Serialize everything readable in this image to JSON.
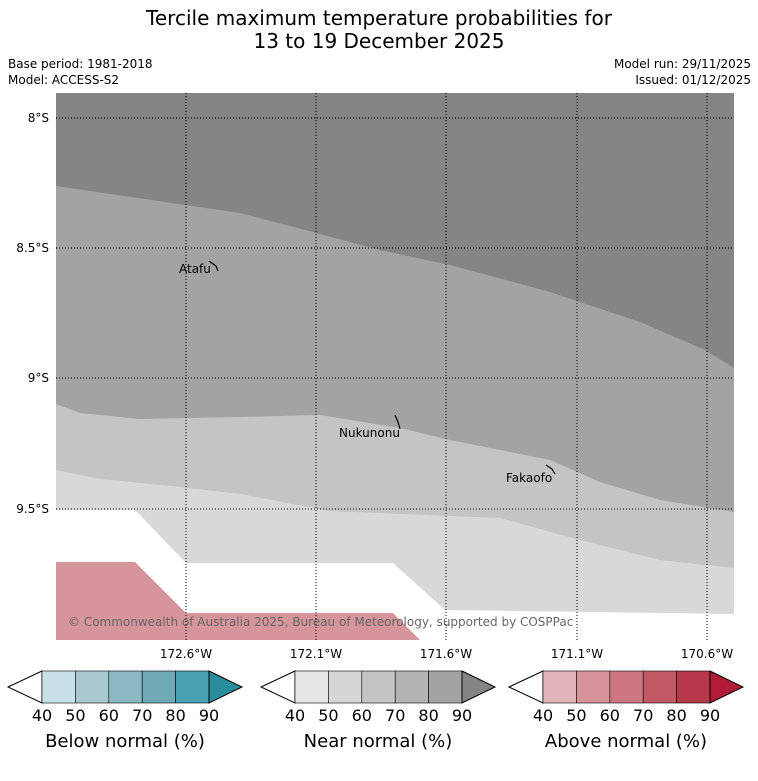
{
  "title": {
    "line1": "Tercile maximum temperature probabilities for",
    "line2": "13 to 19 December 2025"
  },
  "meta": {
    "base_period": "Base period: 1981-2018",
    "model": "Model: ACCESS-S2",
    "model_run": "Model run: 29/11/2025",
    "issued": "Issued: 01/12/2025"
  },
  "map": {
    "lat_labels": [
      "8°S",
      "8.5°S",
      "9°S",
      "9.5°S"
    ],
    "lon_labels": [
      "172.6°W",
      "172.1°W",
      "171.6°W",
      "171.1°W",
      "170.6°W"
    ],
    "places": [
      "Atafu",
      "Nukunonu",
      "Fakaofo"
    ],
    "copyright": "© Commonwealth of Australia 2025, Bureau of Meteorology, supported by COSPPac",
    "colors": {
      "near_normal_90": "#858585",
      "near_normal_80": "#a3a3a3",
      "near_normal_70": "#c4c4c4",
      "near_normal_60": "#d8d8d8",
      "above_normal_50": "#d6959b",
      "no_dominant": "#ffffff"
    }
  },
  "colorbars": [
    {
      "name": "below",
      "title": "Below normal (%)",
      "ticks": [
        "40",
        "50",
        "60",
        "70",
        "80",
        "90"
      ],
      "colors": [
        "#ffffff",
        "#c8e1e6",
        "#a8c8cd",
        "#8cb8c2",
        "#6fa9b5",
        "#4aa0b0",
        "#2a8d9c"
      ]
    },
    {
      "name": "near",
      "title": "Near normal (%)",
      "ticks": [
        "40",
        "50",
        "60",
        "70",
        "80",
        "90"
      ],
      "colors": [
        "#ffffff",
        "#e6e6e6",
        "#d6d6d6",
        "#c4c4c4",
        "#b3b3b3",
        "#a3a3a3",
        "#858585"
      ]
    },
    {
      "name": "above",
      "title": "Above normal (%)",
      "ticks": [
        "40",
        "50",
        "60",
        "70",
        "80",
        "90"
      ],
      "colors": [
        "#ffffff",
        "#e0b4b9",
        "#d6959b",
        "#cc777f",
        "#c25a66",
        "#b8384a",
        "#b01c38"
      ]
    }
  ]
}
